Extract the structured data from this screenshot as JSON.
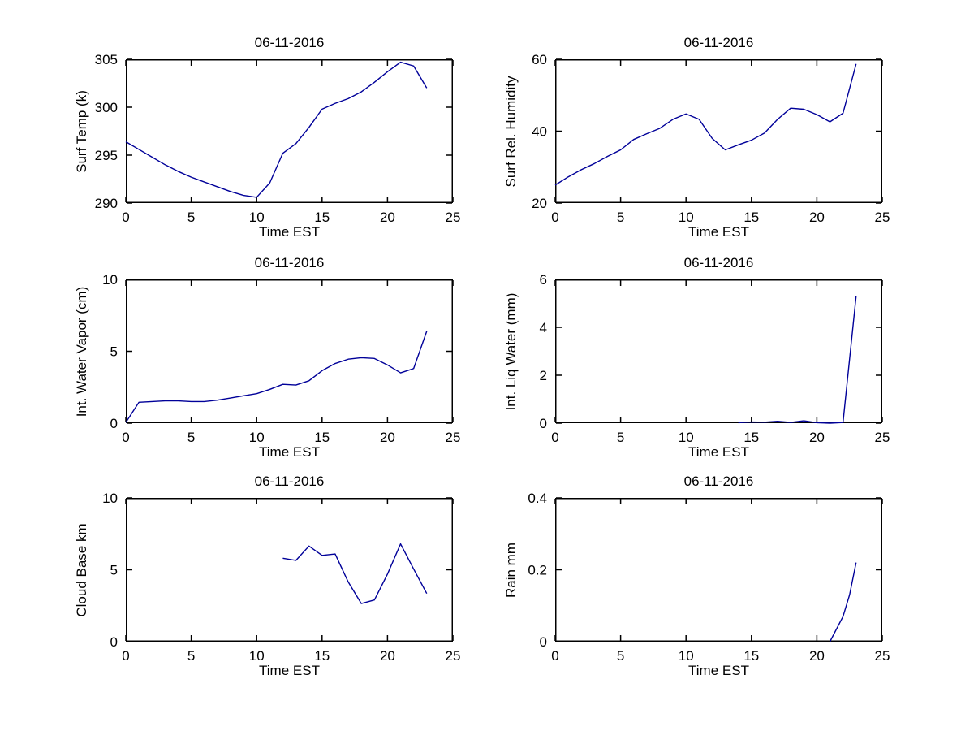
{
  "figure": {
    "background": "#ffffff",
    "axis_color": "#000000",
    "line_color": "#000099",
    "date": "06-11-2016"
  },
  "chart_data": [
    {
      "type": "line",
      "title": "06-11-2016",
      "xlabel": "Time EST",
      "ylabel": "Surf Temp (k)",
      "xlim": [
        0,
        25
      ],
      "ylim": [
        290,
        305
      ],
      "xticks": [
        "0",
        "5",
        "10",
        "15",
        "20",
        "25"
      ],
      "yticks": [
        "290",
        "295",
        "300",
        "305"
      ],
      "grid": false,
      "legend": null,
      "x": [
        0,
        1,
        2,
        3,
        4,
        5,
        6,
        7,
        8,
        9,
        10,
        11,
        12,
        13,
        14,
        15,
        16,
        17,
        18,
        19,
        20,
        21,
        22,
        23
      ],
      "y": [
        296.4,
        295.6,
        294.8,
        294.0,
        293.3,
        292.7,
        292.2,
        291.7,
        291.2,
        290.8,
        290.6,
        292.1,
        295.2,
        296.2,
        297.9,
        299.8,
        300.4,
        300.9,
        301.6,
        302.6,
        303.7,
        304.7,
        304.3,
        302.0
      ]
    },
    {
      "type": "line",
      "title": "06-11-2016",
      "xlabel": "Time EST",
      "ylabel": "Surf Rel. Humidity",
      "xlim": [
        0,
        25
      ],
      "ylim": [
        20,
        60
      ],
      "xticks": [
        "0",
        "5",
        "10",
        "15",
        "20",
        "25"
      ],
      "yticks": [
        "20",
        "40",
        "60"
      ],
      "grid": false,
      "legend": null,
      "x": [
        0,
        1,
        2,
        3,
        4,
        5,
        6,
        7,
        8,
        9,
        10,
        11,
        12,
        13,
        14,
        15,
        16,
        17,
        18,
        19,
        20,
        21,
        22,
        23
      ],
      "y": [
        25.0,
        27.3,
        29.3,
        31.0,
        33.0,
        34.8,
        37.7,
        39.3,
        40.8,
        43.3,
        44.8,
        43.3,
        38.0,
        34.8,
        36.2,
        37.5,
        39.5,
        43.3,
        46.4,
        46.1,
        44.6,
        42.6,
        45.0,
        58.7
      ]
    },
    {
      "type": "line",
      "title": "06-11-2016",
      "xlabel": "Time EST",
      "ylabel": "Int. Water Vapor (cm)",
      "xlim": [
        0,
        25
      ],
      "ylim": [
        0,
        10
      ],
      "xticks": [
        "0",
        "5",
        "10",
        "15",
        "20",
        "25"
      ],
      "yticks": [
        "0",
        "5",
        "10"
      ],
      "grid": false,
      "legend": null,
      "x": [
        0,
        1,
        2,
        3,
        4,
        5,
        6,
        7,
        8,
        9,
        10,
        11,
        12,
        13,
        14,
        15,
        16,
        17,
        18,
        19,
        20,
        21,
        22,
        23
      ],
      "y": [
        0.05,
        1.45,
        1.5,
        1.55,
        1.55,
        1.5,
        1.5,
        1.6,
        1.75,
        1.9,
        2.05,
        2.35,
        2.7,
        2.65,
        2.95,
        3.65,
        4.15,
        4.45,
        4.55,
        4.5,
        4.05,
        3.5,
        3.8,
        6.4
      ]
    },
    {
      "type": "line",
      "title": "06-11-2016",
      "xlabel": "Time EST",
      "ylabel": "Int. Liq Water (mm)",
      "xlim": [
        0,
        25
      ],
      "ylim": [
        0,
        6
      ],
      "xticks": [
        "0",
        "5",
        "10",
        "15",
        "20",
        "25"
      ],
      "yticks": [
        "0",
        "2",
        "4",
        "6"
      ],
      "grid": false,
      "legend": null,
      "x": [
        14,
        15,
        16,
        17,
        18,
        19,
        20,
        21,
        22,
        23
      ],
      "y": [
        0.02,
        0.05,
        0.04,
        0.08,
        0.03,
        0.1,
        0.02,
        0.0,
        0.03,
        5.3
      ]
    },
    {
      "type": "line",
      "title": "06-11-2016",
      "xlabel": "Time EST",
      "ylabel": "Cloud Base km",
      "xlim": [
        0,
        25
      ],
      "ylim": [
        0,
        10
      ],
      "xticks": [
        "0",
        "5",
        "10",
        "15",
        "20",
        "25"
      ],
      "yticks": [
        "0",
        "5",
        "10"
      ],
      "grid": false,
      "legend": null,
      "x": [
        12,
        13,
        14,
        15,
        16,
        17,
        18,
        19,
        20,
        21,
        22,
        23
      ],
      "y": [
        5.8,
        5.65,
        6.65,
        6.0,
        6.1,
        4.15,
        2.65,
        2.9,
        4.7,
        6.8,
        5.05,
        3.35
      ]
    },
    {
      "type": "line",
      "title": "06-11-2016",
      "xlabel": "Time EST",
      "ylabel": "Rain mm",
      "xlim": [
        0,
        25
      ],
      "ylim": [
        0,
        0.4
      ],
      "xticks": [
        "0",
        "5",
        "10",
        "15",
        "20",
        "25"
      ],
      "yticks": [
        "0",
        "0.2",
        "0.4"
      ],
      "grid": false,
      "legend": null,
      "x": [
        21,
        22,
        22.5,
        23
      ],
      "y": [
        0.0,
        0.07,
        0.13,
        0.22
      ]
    }
  ]
}
